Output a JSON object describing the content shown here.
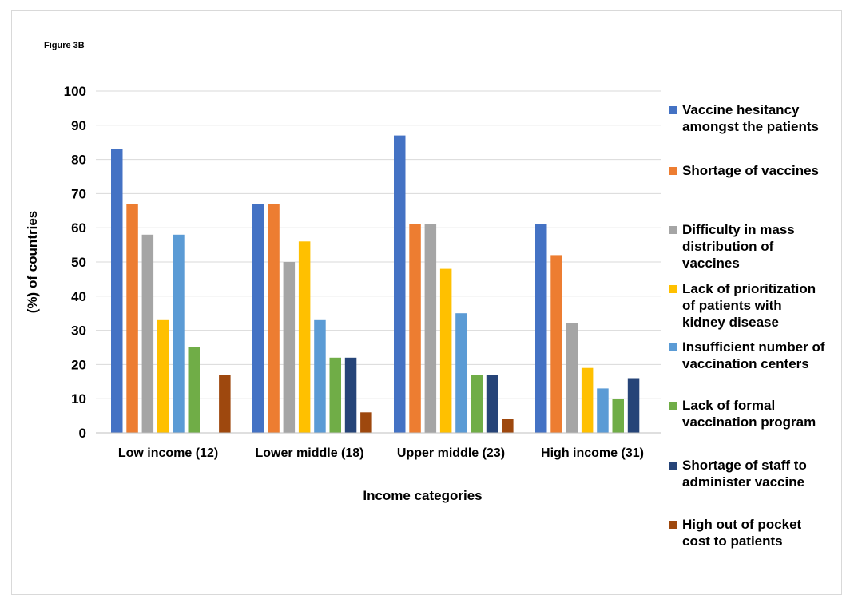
{
  "figure_label": "Figure 3B",
  "chart_data": {
    "type": "bar",
    "title": "",
    "xlabel": "Income categories",
    "ylabel": "(%) of countries",
    "ylim": [
      0,
      100
    ],
    "yticks": [
      0,
      10,
      20,
      30,
      40,
      50,
      60,
      70,
      80,
      90,
      100
    ],
    "grid": true,
    "legend_position": "right",
    "categories": [
      "Low income (12)",
      "Lower middle (18)",
      "Upper middle (23)",
      "High income (31)"
    ],
    "series": [
      {
        "name": "Vaccine hesitancy amongst the patients",
        "color": "#4472c4",
        "values": [
          83,
          67,
          87,
          61
        ]
      },
      {
        "name": "Shortage of vaccines",
        "color": "#ed7d31",
        "values": [
          67,
          67,
          61,
          52
        ]
      },
      {
        "name": "Difficulty in mass distribution of vaccines",
        "color": "#a5a5a5",
        "values": [
          58,
          50,
          61,
          32
        ]
      },
      {
        "name": "Lack of prioritization of patients with kidney disease",
        "color": "#ffc000",
        "values": [
          33,
          56,
          48,
          19
        ]
      },
      {
        "name": "Insufficient number of vaccination centers",
        "color": "#5b9bd5",
        "values": [
          58,
          33,
          35,
          13
        ]
      },
      {
        "name": "Lack of formal vaccination program",
        "color": "#70ad47",
        "values": [
          25,
          22,
          17,
          10
        ]
      },
      {
        "name": "Shortage of staff to administer vaccine",
        "color": "#264478",
        "values": [
          0,
          22,
          17,
          16
        ]
      },
      {
        "name": "High out of pocket cost to patients",
        "color": "#9e480e",
        "values": [
          17,
          6,
          4,
          0
        ]
      }
    ]
  },
  "legend_lines": [
    "Vaccine hesitancy\namongst the patients",
    "Shortage of vaccines",
    "Difficulty in mass\ndistribution of\nvaccines",
    "Lack of prioritization\nof patients with\nkidney disease",
    "Insufficient number of\nvaccination centers",
    "Lack of formal\nvaccination program",
    "Shortage of staff to\nadminister vaccine",
    "High out of pocket\ncost to patients"
  ]
}
